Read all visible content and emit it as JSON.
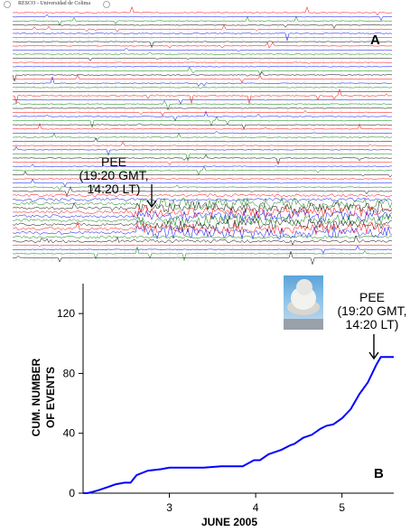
{
  "panel_a": {
    "header_text": "RESCO - Universidad de Colima",
    "panel_letter": "A",
    "annotation": {
      "line1": "PEE",
      "line2": "(19:20 GMT,",
      "line3": "14:20 LT)"
    },
    "colors": {
      "red": "#ff0000",
      "blue": "#0000ff",
      "green": "#008000",
      "black": "#000000"
    }
  },
  "panel_b": {
    "panel_letter": "B",
    "annotation": {
      "line1": "PEE",
      "line2": "(19:20 GMT,",
      "line3": "14:20 LT)"
    },
    "line_color": "#0000ff"
  },
  "chart_data": {
    "type": "line",
    "title": "",
    "xlabel": "JUNE 2005",
    "ylabel_line1": "CUM. NUMBER",
    "ylabel_line2": "OF EVENTS",
    "xlim": [
      2.0,
      5.6
    ],
    "ylim": [
      0,
      140
    ],
    "xticks": [
      3,
      4,
      5
    ],
    "yticks": [
      0,
      40,
      80,
      120
    ],
    "grid": false,
    "series": [
      {
        "x": [
          2.0,
          2.05,
          2.12,
          2.18,
          2.28,
          2.38,
          2.48,
          2.55,
          2.62,
          2.75,
          2.9,
          3.0,
          3.2,
          3.4,
          3.6,
          3.85,
          3.98,
          4.05,
          4.15,
          4.3,
          4.4,
          4.45,
          4.55,
          4.65,
          4.75,
          4.82,
          4.9,
          5.0,
          5.1,
          5.2,
          5.3,
          5.4,
          5.45,
          5.6
        ],
        "y": [
          0,
          0,
          1,
          2,
          4,
          6,
          7,
          7,
          12,
          15,
          16,
          17,
          17,
          17,
          18,
          18,
          22,
          22,
          26,
          29,
          32,
          33,
          37,
          39,
          43,
          45,
          46,
          50,
          56,
          66,
          74,
          86,
          91,
          91
        ]
      }
    ]
  }
}
